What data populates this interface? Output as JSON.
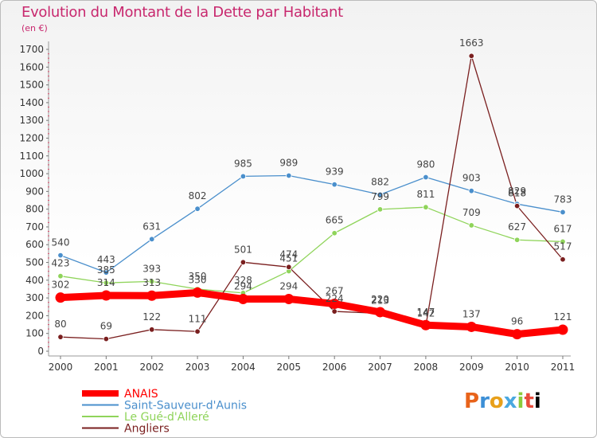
{
  "title": "Evolution du Montant de la Dette par Habitant",
  "subtitle": "(en €)",
  "logo": {
    "chars": [
      "P",
      "r",
      "o",
      "x",
      "i",
      "t",
      "i"
    ]
  },
  "chart_data": {
    "type": "line",
    "x": [
      2000,
      2001,
      2002,
      2003,
      2004,
      2005,
      2006,
      2007,
      2008,
      2009,
      2010,
      2011
    ],
    "ylim": [
      0,
      1700
    ],
    "yticks": [
      0,
      100,
      200,
      300,
      400,
      500,
      600,
      700,
      800,
      900,
      1000,
      1100,
      1200,
      1300,
      1400,
      1500,
      1600,
      1700
    ],
    "grid": false,
    "legend_position": "bottom-left",
    "series": [
      {
        "name": "ANAIS",
        "color": "#ff0000",
        "values": [
          302,
          314,
          313,
          330,
          294,
          294,
          267,
          220,
          147,
          137,
          96,
          121
        ]
      },
      {
        "name": "Saint-Sauveur-d'Aunis",
        "color": "#4a8fcc",
        "values": [
          540,
          443,
          631,
          802,
          985,
          989,
          939,
          882,
          980,
          903,
          829,
          783
        ]
      },
      {
        "name": "Le Gué-d'Alleré",
        "color": "#8fd45a",
        "values": [
          423,
          385,
          393,
          350,
          328,
          451,
          665,
          799,
          811,
          709,
          627,
          617
        ]
      },
      {
        "name": "Angliers",
        "color": "#7a1f1f",
        "values": [
          80,
          69,
          122,
          111,
          501,
          474,
          224,
          213,
          142,
          1663,
          818,
          517
        ]
      }
    ]
  }
}
